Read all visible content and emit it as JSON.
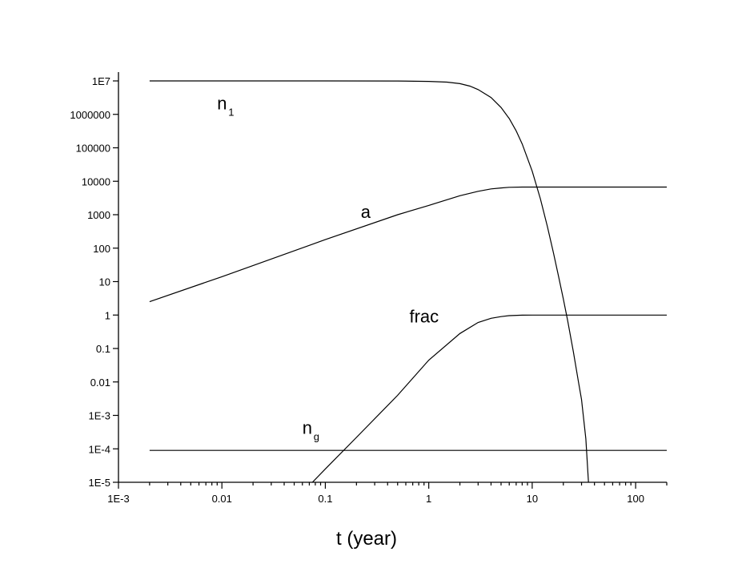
{
  "chart_data": {
    "type": "line",
    "title": "",
    "xlabel": "t (year)",
    "ylabel": "",
    "xscale": "log",
    "yscale": "log",
    "xlim": [
      0.001,
      200
    ],
    "ylim": [
      1e-05,
      10000000
    ],
    "grid": false,
    "legend": "none",
    "x_tick_labels": [
      "1E-3",
      "0.01",
      "0.1",
      "1",
      "10",
      "100"
    ],
    "y_tick_labels": [
      "1E-5",
      "1E-4",
      "1E-3",
      "0.01",
      "0.1",
      "1",
      "10",
      "100",
      "1000",
      "10000",
      "100000",
      "1000000",
      "1E7"
    ],
    "series": [
      {
        "name": "n",
        "name_subscript": "1",
        "x": [
          0.002,
          0.01,
          0.1,
          0.5,
          1,
          1.5,
          2,
          2.5,
          3,
          4,
          5,
          6,
          7,
          8,
          10,
          12,
          14,
          16,
          18,
          20,
          22,
          25,
          28,
          30,
          33,
          35
        ],
        "y": [
          10000000,
          10000000,
          10000000,
          9950000,
          9700000,
          9200000,
          8300000,
          7000000,
          5500000,
          3200000,
          1600000,
          750000,
          320000,
          130000,
          20000,
          3000,
          450,
          75,
          14,
          3,
          0.7,
          0.08,
          0.01,
          0.003,
          0.0002,
          1e-05
        ]
      },
      {
        "name": "a",
        "x": [
          0.002,
          0.01,
          0.1,
          0.5,
          1,
          2,
          3,
          4,
          5,
          6,
          8,
          10,
          20,
          50,
          100,
          200
        ],
        "y": [
          2.5,
          14,
          180,
          1000,
          1900,
          3700,
          5000,
          5900,
          6300,
          6600,
          6700,
          6700,
          6700,
          6700,
          6700,
          6700
        ]
      },
      {
        "name": "frac",
        "x": [
          0.075,
          0.1,
          0.2,
          0.5,
          1,
          2,
          3,
          4,
          5,
          6,
          8,
          10,
          20,
          50,
          100,
          200
        ],
        "y": [
          1e-05,
          2.5e-05,
          0.00022,
          0.004,
          0.045,
          0.28,
          0.6,
          0.8,
          0.9,
          0.96,
          0.99,
          1,
          1,
          1,
          1,
          1
        ]
      },
      {
        "name": "n",
        "name_subscript": "g",
        "x": [
          0.002,
          0.01,
          0.1,
          1,
          10,
          100,
          200
        ],
        "y": [
          9e-05,
          9e-05,
          9e-05,
          9e-05,
          9e-05,
          9e-05,
          9e-05
        ]
      }
    ],
    "annotations": [
      {
        "series": 0,
        "text": "n",
        "subscript": "1",
        "x": 0.009,
        "y": 1400000
      },
      {
        "series": 1,
        "text": "a",
        "x": 0.22,
        "y": 800
      },
      {
        "series": 2,
        "text": "frac",
        "x": 0.65,
        "y": 0.6
      },
      {
        "series": 3,
        "text": "n",
        "subscript": "g",
        "x": 0.06,
        "y": 0.00028
      }
    ]
  }
}
